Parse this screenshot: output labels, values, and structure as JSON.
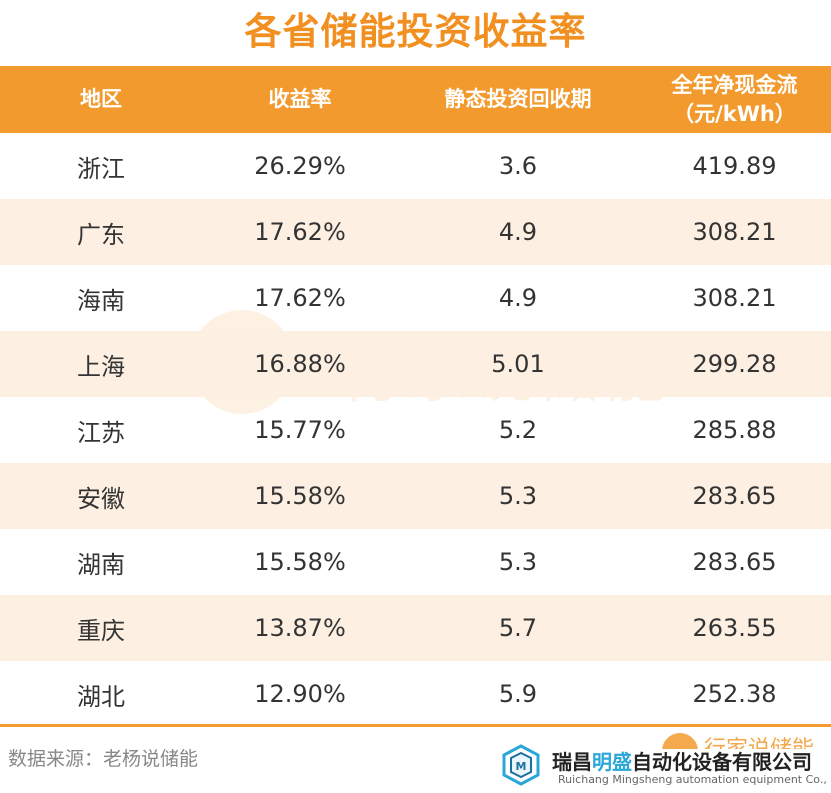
{
  "title": "各省储能投资收益率",
  "table": {
    "headers": [
      "地区",
      "收益率",
      "静态投资回收期",
      "全年净现金流\n（元/kWh）"
    ],
    "rows": [
      [
        "浙江",
        "26.29%",
        "3.6",
        "419.89"
      ],
      [
        "广东",
        "17.62%",
        "4.9",
        "308.21"
      ],
      [
        "海南",
        "17.62%",
        "4.9",
        "308.21"
      ],
      [
        "上海",
        "16.88%",
        "5.01",
        "299.28"
      ],
      [
        "江苏",
        "15.77%",
        "5.2",
        "285.88"
      ],
      [
        "安徽",
        "15.58%",
        "5.3",
        "283.65"
      ],
      [
        "湖南",
        "15.58%",
        "5.3",
        "283.65"
      ],
      [
        "重庆",
        "13.87%",
        "5.7",
        "263.55"
      ],
      [
        "湖北",
        "12.90%",
        "5.9",
        "252.38"
      ]
    ]
  },
  "watermark": {
    "logo_glyph": "已",
    "text": "行家说储能"
  },
  "footer": {
    "source": "数据来源：老杨说储能",
    "brand_partial": "行家说储能",
    "company_cn_a": "瑞昌",
    "company_cn_b": "明盛",
    "company_cn_c": "自动化设备有限公司",
    "company_en": "Ruichang Mingsheng automation equipment Co., Ltd"
  },
  "colors": {
    "accent": "#f29a2e",
    "title": "#f19021",
    "stripe": "#fdf0e3",
    "brand_blue": "#2aa7d8"
  }
}
